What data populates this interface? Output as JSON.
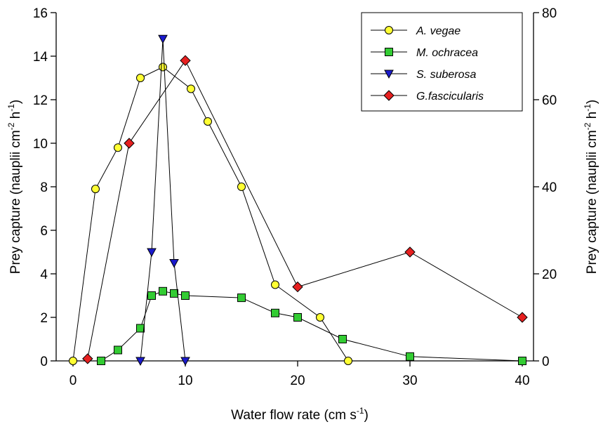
{
  "chart_data": {
    "type": "line",
    "xlabel": "Water flow rate (cm s",
    "xlabel_sup": "-1",
    "xlabel_end": ")",
    "ylabel_left": {
      "pre": "Prey capture (nauplii cm",
      "sup1": "-2",
      "mid": " h",
      "sup2": "-1",
      "end": ")"
    },
    "ylabel_right": {
      "pre": "Prey capture (nauplii cm",
      "sup1": "-2",
      "mid": " h",
      "sup2": "-1",
      "end": ")"
    },
    "xlim": [
      -1.5,
      41
    ],
    "ylim_left": [
      0,
      16
    ],
    "ylim_right": [
      0,
      80
    ],
    "x_ticks": [
      0,
      10,
      20,
      30,
      40
    ],
    "y_ticks_left": [
      0,
      2,
      4,
      6,
      8,
      10,
      12,
      14,
      16
    ],
    "y_ticks_right": [
      0,
      20,
      40,
      60,
      80
    ],
    "legend_position": "top-right",
    "series": [
      {
        "name": "A. vegae",
        "axis": "left",
        "marker": "circle",
        "color": "#ffff33",
        "x": [
          0,
          2,
          4,
          6,
          8,
          10.5,
          12,
          15,
          18,
          22,
          24.5
        ],
        "y": [
          0,
          7.9,
          9.8,
          13.0,
          13.5,
          12.5,
          11.0,
          8.0,
          3.5,
          2.0,
          0
        ]
      },
      {
        "name": "M. ochracea",
        "axis": "left",
        "marker": "square",
        "color": "#33cc33",
        "x": [
          2.5,
          4,
          6,
          7,
          8,
          9,
          10,
          15,
          18,
          20,
          24,
          30,
          40
        ],
        "y": [
          0,
          0.5,
          1.5,
          3.0,
          3.2,
          3.1,
          3.0,
          2.9,
          2.2,
          2.0,
          1.0,
          0.2,
          0
        ]
      },
      {
        "name": "S. suberosa",
        "axis": "left",
        "marker": "triangle-down",
        "color": "#1a1acc",
        "x": [
          6,
          7,
          8,
          9,
          10
        ],
        "y": [
          0,
          5.0,
          14.8,
          4.5,
          0
        ]
      },
      {
        "name": "G.fascicularis",
        "axis": "right",
        "marker": "diamond",
        "color": "#e62020",
        "x": [
          1.3,
          5,
          10,
          20,
          30,
          40
        ],
        "y": [
          0.5,
          50,
          69,
          17,
          25,
          10
        ]
      }
    ]
  }
}
